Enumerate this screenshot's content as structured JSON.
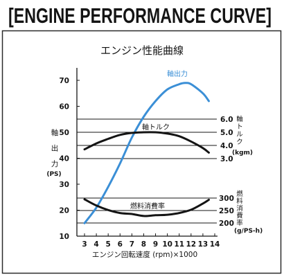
{
  "heading": "[ENGINE PERFORMANCE CURVE]",
  "colors": {
    "power": "#3b8fd6",
    "ink": "#141414",
    "frame": "#2a2a2a"
  },
  "chart_data": {
    "type": "line",
    "title": "エンジン性能曲線",
    "xlabel": "エンジン回転速度 (rpm)×1000",
    "x_ticks": [
      "3",
      "4",
      "5",
      "6",
      "7",
      "8",
      "9",
      "10",
      "11",
      "12",
      "13",
      "14"
    ],
    "xlim": [
      3,
      14
    ],
    "grid": "horizontal lines at right-axis ticks",
    "axes": {
      "left": {
        "label": "軸出力",
        "unit": "(PS)",
        "ticks": [
          "70",
          "60",
          "50",
          "40",
          "30",
          "20",
          "10"
        ],
        "ylim": [
          10,
          70
        ]
      },
      "right_torque": {
        "label": "軸トルク",
        "unit": "(kgm)",
        "ticks": [
          "6.0",
          "5.0",
          "4.0",
          "3.0"
        ],
        "ylim": [
          3,
          6
        ]
      },
      "right_fuel": {
        "label": "燃料消費率",
        "unit": "(g/PS-h)",
        "ticks": [
          "300",
          "250",
          "200"
        ],
        "ylim": [
          200,
          300
        ]
      }
    },
    "series": [
      {
        "name": "軸出力",
        "axis": "left",
        "color": "#3b8fd6",
        "x": [
          3,
          4,
          5,
          6,
          7,
          8,
          9,
          10,
          11,
          11.5,
          12,
          13,
          13.5
        ],
        "y": [
          15,
          21,
          29,
          38,
          48,
          56,
          62,
          66.5,
          68.5,
          69,
          68.5,
          65,
          62
        ]
      },
      {
        "name": "軸トルク",
        "axis": "right_torque",
        "color": "#141414",
        "x": [
          3,
          4,
          5,
          6,
          7,
          8,
          9,
          10,
          11,
          12,
          13,
          13.5
        ],
        "y": [
          3.7,
          4.15,
          4.5,
          4.8,
          4.95,
          5.0,
          5.0,
          4.9,
          4.7,
          4.3,
          3.8,
          3.45
        ]
      },
      {
        "name": "燃料消費率",
        "axis": "right_fuel",
        "color": "#141414",
        "x": [
          3,
          4,
          5,
          6,
          7,
          8,
          9,
          10,
          11,
          12,
          13,
          13.5
        ],
        "y": [
          295,
          270,
          252,
          240,
          236,
          228,
          231,
          233,
          240,
          253,
          278,
          293
        ]
      }
    ]
  }
}
